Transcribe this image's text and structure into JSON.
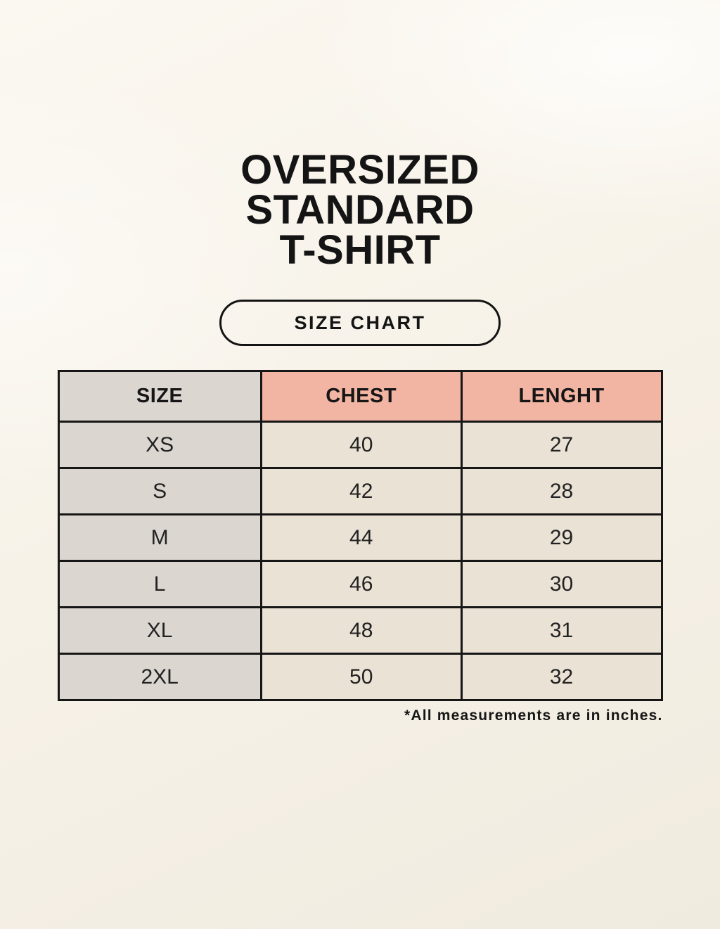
{
  "title": {
    "lines": [
      "OVERSIZED",
      "STANDARD",
      "T-SHIRT"
    ]
  },
  "size_chart_button": {
    "label": "SIZE CHART"
  },
  "table": {
    "headers": [
      "SIZE",
      "CHEST",
      "LENGHT"
    ],
    "rows": [
      [
        "XS",
        "40",
        "27"
      ],
      [
        "S",
        "42",
        "28"
      ],
      [
        "M",
        "44",
        "29"
      ],
      [
        "L",
        "46",
        "30"
      ],
      [
        "XL",
        "48",
        "31"
      ],
      [
        "2XL",
        "50",
        "32"
      ]
    ]
  },
  "footnote": "*All measurements are in inches.",
  "colors": {
    "header_accent": "#f2b5a3",
    "size_column": "#dcd6d1",
    "data_cell": "#eae2d5",
    "border": "#161616",
    "background": "#f5f0e6"
  }
}
